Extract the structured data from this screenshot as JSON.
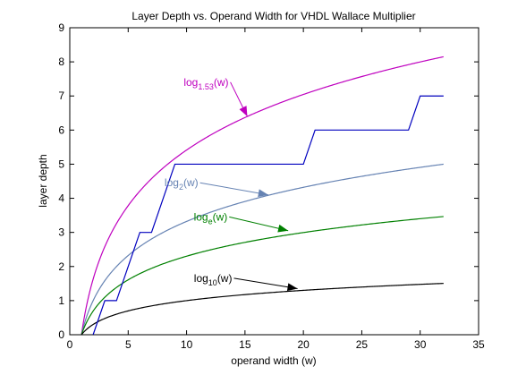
{
  "chart_data": {
    "type": "line",
    "title": "Layer Depth vs. Operand Width for VHDL Wallace Multiplier",
    "xlabel": "operand width (w)",
    "ylabel": "layer depth",
    "xlim": [
      0,
      35
    ],
    "ylim": [
      0,
      9
    ],
    "xticks": [
      "0",
      "5",
      "10",
      "15",
      "20",
      "25",
      "30",
      "35"
    ],
    "yticks": [
      "0",
      "1",
      "2",
      "3",
      "4",
      "5",
      "6",
      "7",
      "8",
      "9"
    ],
    "grid": false,
    "legend": "none",
    "colors": {
      "log153": "#bf00bf",
      "depth": "#0000bf",
      "log2": "#6683b3",
      "loge": "#008000",
      "log10": "#000000"
    },
    "series": [
      {
        "key": "log153",
        "fn": "log_base",
        "base": 1.53,
        "x_range": [
          1,
          32
        ]
      },
      {
        "key": "log2",
        "fn": "log_base",
        "base": 2,
        "x_range": [
          1,
          32
        ]
      },
      {
        "key": "loge",
        "fn": "log_base",
        "base": 2.718281828,
        "x_range": [
          1,
          32
        ]
      },
      {
        "key": "log10",
        "fn": "log_base",
        "base": 10,
        "x_range": [
          1,
          32
        ]
      },
      {
        "key": "depth",
        "points": [
          [
            2,
            0
          ],
          [
            3,
            1
          ],
          [
            4,
            1
          ],
          [
            5,
            2
          ],
          [
            6,
            3
          ],
          [
            7,
            3
          ],
          [
            8,
            4
          ],
          [
            9,
            5
          ],
          [
            20,
            5
          ],
          [
            21,
            6
          ],
          [
            29,
            6
          ],
          [
            30,
            7
          ],
          [
            32,
            7
          ]
        ]
      }
    ],
    "annotations": [
      {
        "key": "log153",
        "text": "log",
        "sub": "1.53",
        "suffix": "(w)",
        "text_at": [
          13.6,
          7.3
        ],
        "arrow_to": [
          15.2,
          6.4
        ]
      },
      {
        "key": "log2",
        "text": "log",
        "sub": "2",
        "suffix": "(w)",
        "text_at": [
          11.0,
          4.35
        ],
        "arrow_to": [
          17.0,
          4.1
        ]
      },
      {
        "key": "loge",
        "text": "log",
        "sub": "e",
        "suffix": "(w)",
        "text_at": [
          13.5,
          3.35
        ],
        "arrow_to": [
          18.7,
          3.05
        ]
      },
      {
        "key": "log10",
        "text": "log",
        "sub": "10",
        "suffix": "(w)",
        "text_at": [
          13.9,
          1.55
        ],
        "arrow_to": [
          19.5,
          1.35
        ]
      }
    ]
  }
}
